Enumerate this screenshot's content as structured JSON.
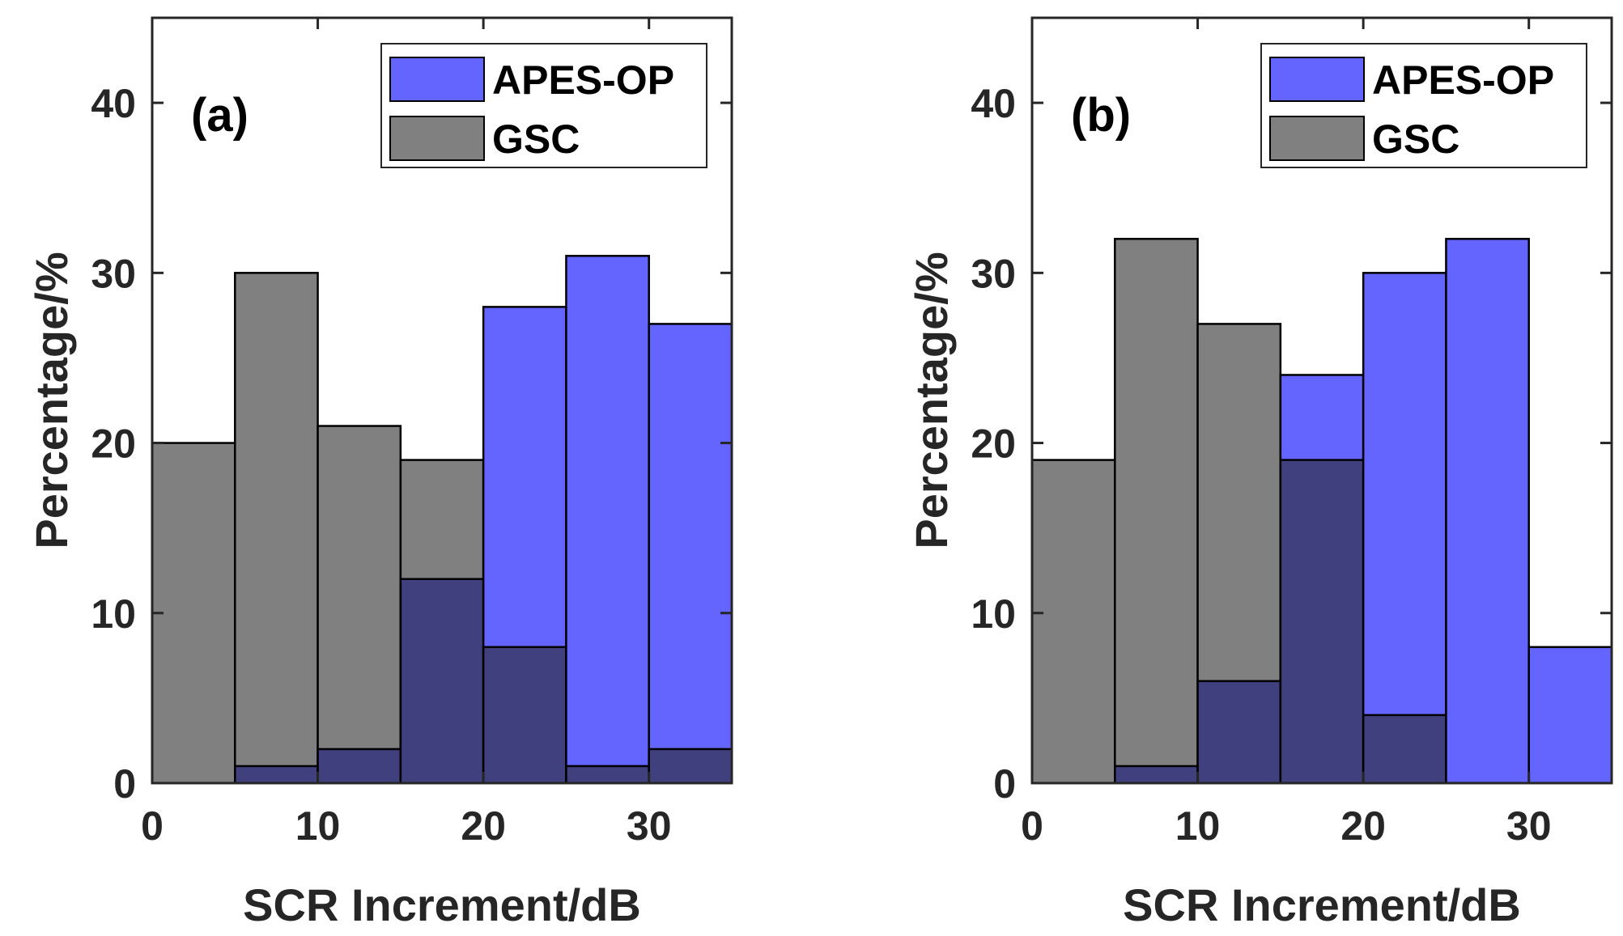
{
  "figure": {
    "background": "#ffffff"
  },
  "chart_data": [
    {
      "type": "bar",
      "panel_label": "(a)",
      "bin_edges": [
        0,
        5,
        10,
        15,
        20,
        25,
        30,
        35
      ],
      "xlabel": "SCR Increment/dB",
      "ylabel": "Percentage/%",
      "xlim": [
        0,
        35
      ],
      "ylim": [
        0,
        45
      ],
      "xticks": [
        0,
        10,
        20,
        30
      ],
      "yticks": [
        0,
        10,
        20,
        30,
        40
      ],
      "grid": false,
      "legend_position": "top-right",
      "series": [
        {
          "name": "APES-OP",
          "color": "#6464ff",
          "values": [
            0,
            1,
            2,
            12,
            28,
            31,
            27
          ]
        },
        {
          "name": "GSC",
          "color": "#808080",
          "values": [
            20,
            30,
            21,
            19,
            8,
            1,
            2
          ]
        }
      ],
      "overlap_color": "#40407f"
    },
    {
      "type": "bar",
      "panel_label": "(b)",
      "bin_edges": [
        0,
        5,
        10,
        15,
        20,
        25,
        30,
        35
      ],
      "xlabel": "SCR Increment/dB",
      "ylabel": "Percentage/%",
      "xlim": [
        0,
        35
      ],
      "ylim": [
        0,
        45
      ],
      "xticks": [
        0,
        10,
        20,
        30
      ],
      "yticks": [
        0,
        10,
        20,
        30,
        40
      ],
      "grid": false,
      "legend_position": "top-right",
      "series": [
        {
          "name": "APES-OP",
          "color": "#6464ff",
          "values": [
            0,
            1,
            6,
            24,
            30,
            32,
            8
          ]
        },
        {
          "name": "GSC",
          "color": "#808080",
          "values": [
            19,
            32,
            27,
            19,
            4,
            0,
            0
          ]
        }
      ],
      "overlap_color": "#40407f"
    }
  ]
}
